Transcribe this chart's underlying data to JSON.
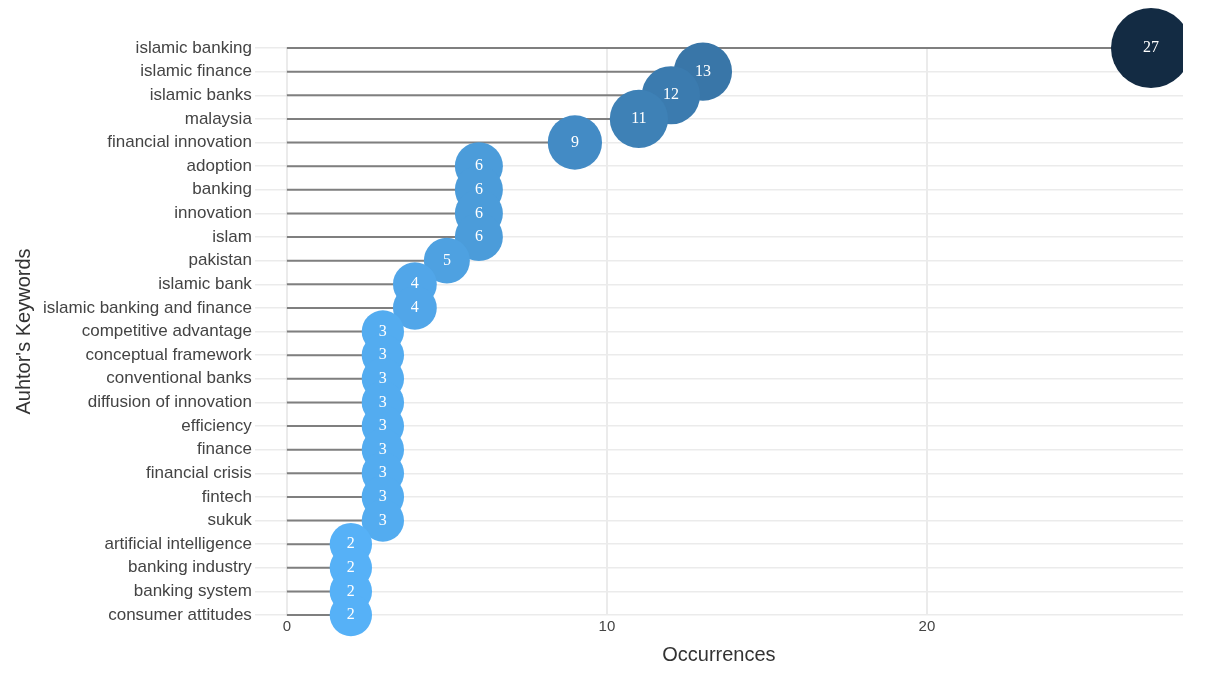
{
  "chart_data": {
    "type": "lollipop",
    "orientation": "horizontal",
    "xlabel": "Occurrences",
    "ylabel": "Auhtor's Keywords",
    "categories": [
      "islamic banking",
      "islamic finance",
      "islamic banks",
      "malaysia",
      "financial innovation",
      "adoption",
      "banking",
      "innovation",
      "islam",
      "pakistan",
      "islamic bank",
      "islamic banking and finance",
      "competitive advantage",
      "conceptual framework",
      "conventional banks",
      "diffusion of innovation",
      "efficiency",
      "finance",
      "financial crisis",
      "fintech",
      "sukuk",
      "artificial intelligence",
      "banking industry",
      "banking system",
      "consumer attitudes"
    ],
    "values": [
      27,
      13,
      12,
      11,
      9,
      6,
      6,
      6,
      6,
      5,
      4,
      4,
      3,
      3,
      3,
      3,
      3,
      3,
      3,
      3,
      3,
      2,
      2,
      2,
      2
    ],
    "colors": [
      "#132b43",
      "#3976a8",
      "#3b7baf",
      "#3e81b6",
      "#438bc5",
      "#4b9cda",
      "#4b9cda",
      "#4b9cda",
      "#4b9cda",
      "#4ea1e1",
      "#51a6e9",
      "#51a6e9",
      "#53acf0",
      "#53acf0",
      "#53acf0",
      "#53acf0",
      "#53acf0",
      "#53acf0",
      "#53acf0",
      "#53acf0",
      "#53acf0",
      "#56b1f7",
      "#56b1f7",
      "#56b1f7",
      "#56b1f7"
    ],
    "sizes": [
      1,
      0.53,
      0.53,
      0.53,
      0.46,
      0.36,
      0.36,
      0.36,
      0.36,
      0.33,
      0.3,
      0.3,
      0.28,
      0.28,
      0.28,
      0.28,
      0.28,
      0.28,
      0.28,
      0.28,
      0.28,
      0.28,
      0.28,
      0.28,
      0.28
    ],
    "xlim": [
      -1,
      28
    ],
    "xticks": [
      0,
      10,
      20
    ],
    "grid": true,
    "data_labels": true,
    "marker": "circle"
  }
}
